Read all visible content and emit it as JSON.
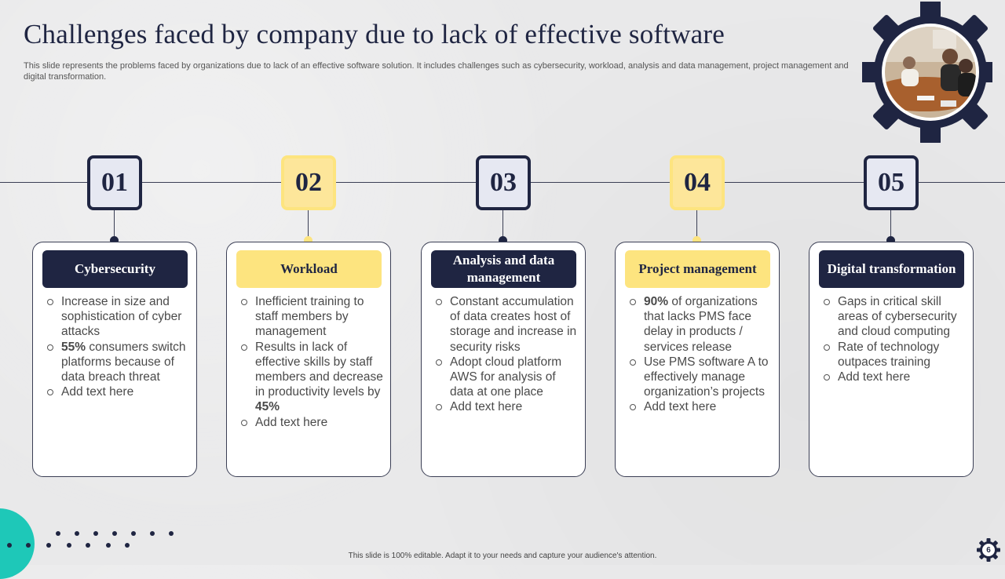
{
  "slide": {
    "title": "Challenges faced by company due to lack of effective software",
    "subtitle": "This slide represents the problems faced by organizations due to lack of an effective software solution. It includes challenges such as cybersecurity, workload, analysis and data management, project management and digital transformation.",
    "footer": "This slide is 100% editable. Adapt it to your needs and capture your audience's attention.",
    "page_number": "6"
  },
  "colors": {
    "navy": "#1f2542",
    "yellow": "#fde47f",
    "teal": "#1ec8b8"
  },
  "steps": [
    {
      "number": "01",
      "theme": "navy",
      "heading": "Cybersecurity",
      "bullets": [
        {
          "bold": "",
          "text": "Increase in size and sophistication of cyber attacks"
        },
        {
          "bold": "55%",
          "text": " consumers switch platforms because of data breach threat"
        },
        {
          "bold": "",
          "text": "Add text here"
        }
      ]
    },
    {
      "number": "02",
      "theme": "yellow",
      "heading": "Workload",
      "bullets": [
        {
          "bold": "",
          "text": "Inefficient training to staff members by management"
        },
        {
          "bold": "",
          "text": "Results in lack of effective skills by staff members and decrease in productivity levels by ",
          "bold_after": "45%"
        },
        {
          "bold": "",
          "text": "Add text here"
        }
      ]
    },
    {
      "number": "03",
      "theme": "navy",
      "heading": "Analysis and data management",
      "bullets": [
        {
          "bold": "",
          "text": "Constant accumulation of data creates host of storage and increase in security risks"
        },
        {
          "bold": "",
          "text": "Adopt cloud platform AWS for analysis of data at one place"
        },
        {
          "bold": "",
          "text": "Add text here"
        }
      ]
    },
    {
      "number": "04",
      "theme": "yellow",
      "heading": "Project management",
      "bullets": [
        {
          "bold": "90%",
          "text": " of organizations that lacks PMS face delay in products / services release"
        },
        {
          "bold": "",
          "text": "Use PMS software A to effectively manage organization’s projects"
        },
        {
          "bold": "",
          "text": "Add text here"
        }
      ]
    },
    {
      "number": "05",
      "theme": "navy",
      "heading": "Digital transformation",
      "bullets": [
        {
          "bold": "",
          "text": "Gaps in critical skill areas of cybersecurity and cloud computing"
        },
        {
          "bold": "",
          "text": "Rate of technology outpaces training"
        },
        {
          "bold": "",
          "text": "Add text here"
        }
      ]
    }
  ],
  "decor": {
    "gear_photo_icon": "meeting-photo-gear-icon",
    "dot_pattern_icon": "dot-pattern-icon"
  }
}
